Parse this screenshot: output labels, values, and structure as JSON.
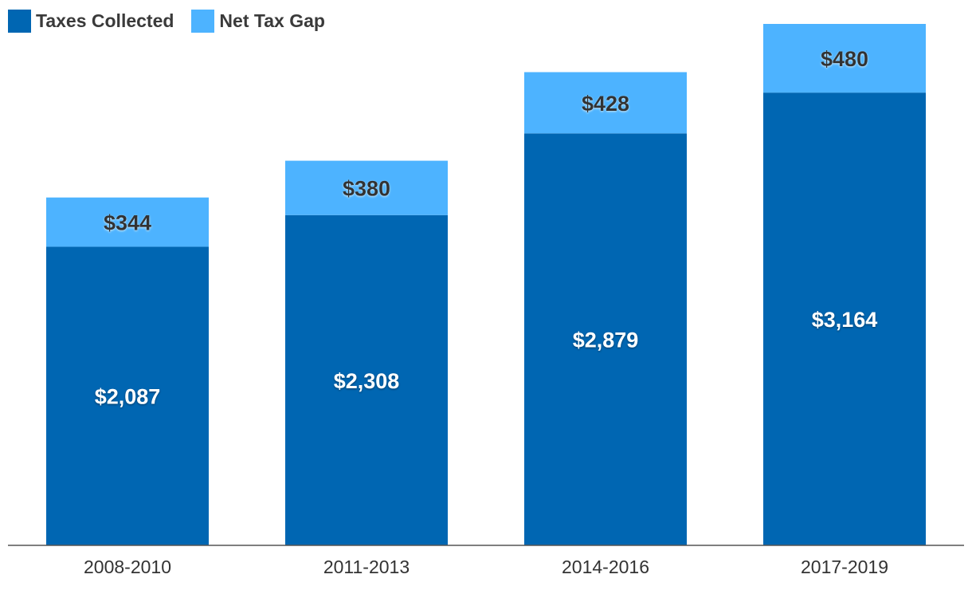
{
  "legend": {
    "items": [
      {
        "label": "Taxes Collected",
        "color": "#0066b2"
      },
      {
        "label": "Net Tax Gap",
        "color": "#4db3ff"
      }
    ]
  },
  "chart_data": {
    "type": "bar",
    "stacked": true,
    "categories": [
      "2008-2010",
      "2011-2013",
      "2014-2016",
      "2017-2019"
    ],
    "series": [
      {
        "name": "Taxes Collected",
        "color": "#0066b2",
        "values": [
          2087,
          2308,
          2879,
          3164
        ],
        "labels": [
          "$2,087",
          "$2,308",
          "$2,879",
          "$3,164"
        ],
        "label_color": "#ffffff"
      },
      {
        "name": "Net Tax Gap",
        "color": "#4db3ff",
        "values": [
          344,
          380,
          428,
          480
        ],
        "labels": [
          "$344",
          "$380",
          "$428",
          "$480"
        ],
        "label_color": "#333333"
      }
    ],
    "ylim": [
      0,
      3644
    ],
    "grid": false,
    "legend_position": "top-left",
    "title": "",
    "xlabel": "",
    "ylabel": ""
  }
}
